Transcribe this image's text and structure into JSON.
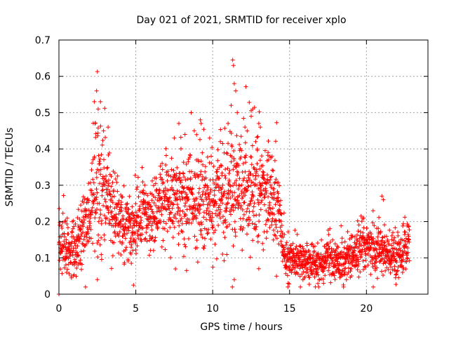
{
  "chart_data": {
    "type": "scatter",
    "title": "Day 021 of 2021, SRMTID for receiver xplo",
    "xlabel": "GPS time / hours",
    "ylabel": "SRMTID / TECUs",
    "xlim": [
      0,
      24
    ],
    "ylim": [
      0,
      0.7
    ],
    "xticks": [
      0,
      5,
      10,
      15,
      20
    ],
    "xtick_labels": [
      "0",
      "5",
      "10",
      "15",
      "20"
    ],
    "yticks": [
      0,
      0.1,
      0.2,
      0.3,
      0.4,
      0.5,
      0.6,
      0.7
    ],
    "ytick_labels": [
      "0",
      "0.1",
      "0.2",
      "0.3",
      "0.4",
      "0.5",
      "0.6",
      "0.7"
    ],
    "grid": true,
    "marker": "+",
    "color": "#ff0000",
    "sample_interval_hours": 0.01,
    "x_start": 0,
    "x_end": 22.8,
    "series": [
      {
        "name": "SRMTID",
        "profile": {
          "x": [
            0,
            0.5,
            1,
            1.5,
            2,
            2.3,
            2.5,
            2.8,
            3,
            3.5,
            4,
            4.5,
            5,
            5.5,
            6,
            6.5,
            7,
            7.5,
            8,
            8.5,
            9,
            9.5,
            10,
            10.5,
            11,
            11.5,
            12,
            12.5,
            13,
            13.5,
            14,
            14.3,
            14.6,
            15,
            15.5,
            16,
            16.5,
            17,
            17.5,
            18,
            18.5,
            19,
            19.5,
            20,
            20.5,
            21,
            21.5,
            22,
            22.5,
            22.8
          ],
          "y": [
            0.16,
            0.12,
            0.13,
            0.16,
            0.22,
            0.28,
            0.26,
            0.24,
            0.27,
            0.23,
            0.19,
            0.18,
            0.19,
            0.22,
            0.23,
            0.24,
            0.25,
            0.27,
            0.25,
            0.26,
            0.27,
            0.25,
            0.24,
            0.27,
            0.28,
            0.29,
            0.3,
            0.28,
            0.31,
            0.27,
            0.27,
            0.26,
            0.12,
            0.1,
            0.09,
            0.08,
            0.09,
            0.08,
            0.1,
            0.09,
            0.08,
            0.1,
            0.13,
            0.14,
            0.11,
            0.12,
            0.1,
            0.11,
            0.12,
            0.13
          ]
        },
        "spread": {
          "x": [
            0,
            2,
            2.5,
            3,
            4,
            6,
            7.5,
            9,
            11,
            12.5,
            14.3,
            14.6,
            16,
            18,
            19.5,
            21,
            22.8
          ],
          "y": [
            0.04,
            0.05,
            0.11,
            0.07,
            0.05,
            0.05,
            0.06,
            0.07,
            0.08,
            0.08,
            0.06,
            0.03,
            0.025,
            0.025,
            0.035,
            0.035,
            0.03
          ]
        },
        "peaks": [
          {
            "x": 2.3,
            "y": 0.53
          },
          {
            "x": 2.35,
            "y": 0.47
          },
          {
            "x": 2.45,
            "y": 0.56
          },
          {
            "x": 2.5,
            "y": 0.613
          },
          {
            "x": 2.55,
            "y": 0.51
          },
          {
            "x": 2.7,
            "y": 0.53
          },
          {
            "x": 2.9,
            "y": 0.45
          },
          {
            "x": 3.2,
            "y": 0.46
          },
          {
            "x": 7.5,
            "y": 0.43
          },
          {
            "x": 7.8,
            "y": 0.47
          },
          {
            "x": 8.2,
            "y": 0.44
          },
          {
            "x": 8.8,
            "y": 0.45
          },
          {
            "x": 9.2,
            "y": 0.48
          },
          {
            "x": 9.25,
            "y": 0.47
          },
          {
            "x": 9.8,
            "y": 0.43
          },
          {
            "x": 10.5,
            "y": 0.42
          },
          {
            "x": 11.0,
            "y": 0.47
          },
          {
            "x": 11.2,
            "y": 0.52
          },
          {
            "x": 11.3,
            "y": 0.645
          },
          {
            "x": 11.35,
            "y": 0.63
          },
          {
            "x": 11.4,
            "y": 0.58
          },
          {
            "x": 11.5,
            "y": 0.56
          },
          {
            "x": 11.6,
            "y": 0.5
          },
          {
            "x": 12.1,
            "y": 0.46
          },
          {
            "x": 12.5,
            "y": 0.49
          },
          {
            "x": 12.6,
            "y": 0.51
          },
          {
            "x": 12.8,
            "y": 0.42
          },
          {
            "x": 13.0,
            "y": 0.47
          },
          {
            "x": 13.1,
            "y": 0.46
          },
          {
            "x": 13.6,
            "y": 0.39
          },
          {
            "x": 21.0,
            "y": 0.27
          },
          {
            "x": 21.1,
            "y": 0.26
          }
        ],
        "lows": [
          {
            "x": 0.0,
            "y": 0.0
          },
          {
            "x": 0.5,
            "y": 0.06
          },
          {
            "x": 0.8,
            "y": 0.05
          },
          {
            "x": 2.5,
            "y": 0.04
          },
          {
            "x": 8.3,
            "y": 0.065
          },
          {
            "x": 11.4,
            "y": 0.04
          },
          {
            "x": 13.0,
            "y": 0.07
          },
          {
            "x": 14.9,
            "y": 0.03
          },
          {
            "x": 15.7,
            "y": 0.02
          }
        ]
      }
    ]
  }
}
